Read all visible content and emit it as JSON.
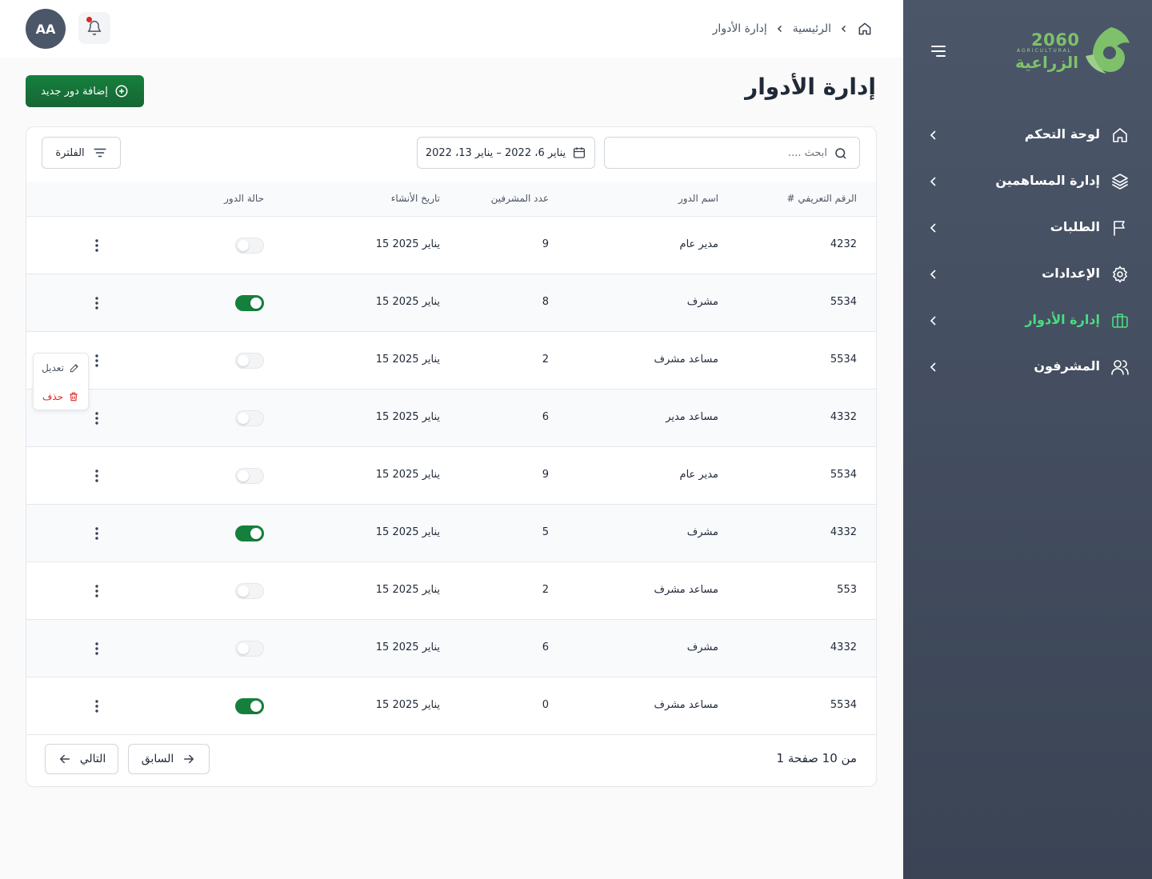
{
  "header": {
    "avatar_initials": "AA",
    "breadcrumb": [
      "الرئيسية",
      "إدارة الأدوار"
    ]
  },
  "sidebar": {
    "logo": {
      "number": "2060",
      "sub": "AGRICULTURAL",
      "name": "الزراعية"
    },
    "items": [
      {
        "label": "لوحة التحكم",
        "icon": "home-icon",
        "active": false
      },
      {
        "label": "إدارة المساهمين",
        "icon": "layers-icon",
        "active": false
      },
      {
        "label": "الطلبات",
        "icon": "flag-icon",
        "active": false
      },
      {
        "label": "الإعدادات",
        "icon": "gear-icon",
        "active": false
      },
      {
        "label": "إدارة الأدوار",
        "icon": "briefcase-icon",
        "active": true
      },
      {
        "label": "المشرفون",
        "icon": "users-icon",
        "active": false
      }
    ],
    "active_color": "#4ade80"
  },
  "page": {
    "title": "إدارة الأدوار",
    "add_button": "إضافة دور جديد"
  },
  "toolbar": {
    "search_placeholder": "ابحث ....",
    "date_range": "يناير 6، 2022 – يناير 13، 2022",
    "filter_label": "الفلترة"
  },
  "table": {
    "headers": {
      "id": "# الرقم التعريفي",
      "name": "اسم الدور",
      "count": "عدد المشرفين",
      "date": "تاريخ الأنشاء",
      "status": "حالة الدور"
    },
    "rows": [
      {
        "id": "4232",
        "name": "مدير عام",
        "count": "9",
        "date": "15 يناير 2025",
        "active": false
      },
      {
        "id": "5534",
        "name": "مشرف",
        "count": "8",
        "date": "15 يناير 2025",
        "active": true
      },
      {
        "id": "5534",
        "name": "مساعد مشرف",
        "count": "2",
        "date": "15 يناير 2025",
        "active": false
      },
      {
        "id": "4332",
        "name": "مساعد مدير",
        "count": "6",
        "date": "15 يناير 2025",
        "active": false
      },
      {
        "id": "5534",
        "name": "مدير عام",
        "count": "9",
        "date": "15 يناير 2025",
        "active": false
      },
      {
        "id": "4332",
        "name": "مشرف",
        "count": "5",
        "date": "15 يناير 2025",
        "active": true
      },
      {
        "id": "553",
        "name": "مساعد مشرف",
        "count": "2",
        "date": "15 يناير 2025",
        "active": false
      },
      {
        "id": "4332",
        "name": "مشرف",
        "count": "6",
        "date": "15 يناير 2025",
        "active": false
      },
      {
        "id": "5534",
        "name": "مساعد مشرف",
        "count": "0",
        "date": "15 يناير 2025",
        "active": true
      }
    ]
  },
  "row_menu": {
    "edit": "تعديل",
    "delete": "حذف"
  },
  "pagination": {
    "info": "1 من 10 صفحة",
    "prev": "السابق",
    "next": "التالي"
  },
  "colors": {
    "primary": "#15803d",
    "danger": "#dc2626",
    "sidebar": "#4b5669"
  }
}
